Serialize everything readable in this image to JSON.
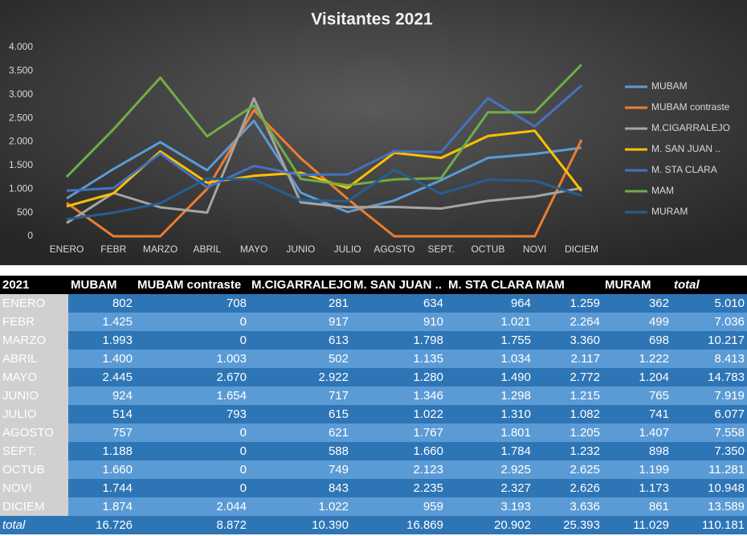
{
  "chart_data": {
    "type": "line",
    "title": "Visitantes 2021",
    "categories": [
      "ENERO",
      "FEBR",
      "MARZO",
      "ABRIL",
      "MAYO",
      "JUNIO",
      "JULIO",
      "AGOSTO",
      "SEPT.",
      "OCTUB",
      "NOVI",
      "DICIEM"
    ],
    "series": [
      {
        "name": "MUBAM",
        "color": "#5b9bd5",
        "values": [
          802,
          1425,
          1993,
          1400,
          2445,
          924,
          514,
          757,
          1188,
          1660,
          1744,
          1874
        ]
      },
      {
        "name": "MUBAM contraste",
        "color": "#ed7d31",
        "values": [
          708,
          0,
          0,
          1003,
          2670,
          1654,
          793,
          0,
          0,
          0,
          0,
          2044
        ]
      },
      {
        "name": "M.CIGARRALEJO",
        "color": "#a5a5a5",
        "values": [
          281,
          917,
          613,
          502,
          2922,
          717,
          615,
          621,
          588,
          749,
          843,
          1022
        ]
      },
      {
        "name": "M. SAN JUAN ..",
        "color": "#ffc000",
        "values": [
          634,
          910,
          1798,
          1135,
          1280,
          1346,
          1022,
          1767,
          1660,
          2123,
          2235,
          959
        ]
      },
      {
        "name": "M. STA CLARA",
        "color": "#4472c4",
        "values": [
          964,
          1021,
          1755,
          1034,
          1490,
          1298,
          1310,
          1801,
          1784,
          2925,
          2327,
          3193
        ]
      },
      {
        "name": "MAM",
        "color": "#70ad47",
        "values": [
          1259,
          2264,
          3360,
          2117,
          2772,
          1215,
          1082,
          1205,
          1232,
          2625,
          2626,
          3636
        ]
      },
      {
        "name": "MURAM",
        "color": "#255e91",
        "values": [
          362,
          499,
          698,
          1222,
          1204,
          765,
          741,
          1407,
          898,
          1199,
          1173,
          861
        ]
      }
    ],
    "ylim": [
      0,
      4000
    ],
    "yticks": [
      0,
      500,
      {
        "value": 1000,
        "label": "1.000"
      },
      {
        "value": 1500,
        "label": "1.500"
      },
      {
        "value": 2000,
        "label": "2.000"
      },
      {
        "value": 2500,
        "label": "2.500"
      },
      {
        "value": 3000,
        "label": "3.000"
      },
      {
        "value": 3500,
        "label": "3.500"
      },
      {
        "value": 4000,
        "label": "4.000"
      }
    ],
    "grid": false,
    "legend": "right"
  },
  "table": {
    "header": [
      "2021",
      "MUBAM",
      "MUBAM contraste",
      "M.CIGARRALEJO",
      "M. SAN JUAN ..",
      "M. STA CLARA",
      "MAM",
      "MURAM",
      "total"
    ],
    "rows": [
      [
        "ENERO",
        "802",
        "708",
        "281",
        "634",
        "964",
        "1.259",
        "362",
        "5.010"
      ],
      [
        "FEBR",
        "1.425",
        "0",
        "917",
        "910",
        "1.021",
        "2.264",
        "499",
        "7.036"
      ],
      [
        "MARZO",
        "1.993",
        "0",
        "613",
        "1.798",
        "1.755",
        "3.360",
        "698",
        "10.217"
      ],
      [
        "ABRIL",
        "1.400",
        "1.003",
        "502",
        "1.135",
        "1.034",
        "2.117",
        "1.222",
        "8.413"
      ],
      [
        "MAYO",
        "2.445",
        "2.670",
        "2.922",
        "1.280",
        "1.490",
        "2.772",
        "1.204",
        "14.783"
      ],
      [
        "JUNIO",
        "924",
        "1.654",
        "717",
        "1.346",
        "1.298",
        "1.215",
        "765",
        "7.919"
      ],
      [
        "JULIO",
        "514",
        "793",
        "615",
        "1.022",
        "1.310",
        "1.082",
        "741",
        "6.077"
      ],
      [
        "AGOSTO",
        "757",
        "0",
        "621",
        "1.767",
        "1.801",
        "1.205",
        "1.407",
        "7.558"
      ],
      [
        "SEPT.",
        "1.188",
        "0",
        "588",
        "1.660",
        "1.784",
        "1.232",
        "898",
        "7.350"
      ],
      [
        "OCTUB",
        "1.660",
        "0",
        "749",
        "2.123",
        "2.925",
        "2.625",
        "1.199",
        "11.281"
      ],
      [
        "NOVI",
        "1.744",
        "0",
        "843",
        "2.235",
        "2.327",
        "2.626",
        "1.173",
        "10.948"
      ],
      [
        "DICIEM",
        "1.874",
        "2.044",
        "1.022",
        "959",
        "3.193",
        "3.636",
        "861",
        "13.589"
      ],
      [
        "total",
        "16.726",
        "8.872",
        "10.390",
        "16.869",
        "20.902",
        "25.393",
        "11.029",
        "110.181"
      ]
    ]
  }
}
